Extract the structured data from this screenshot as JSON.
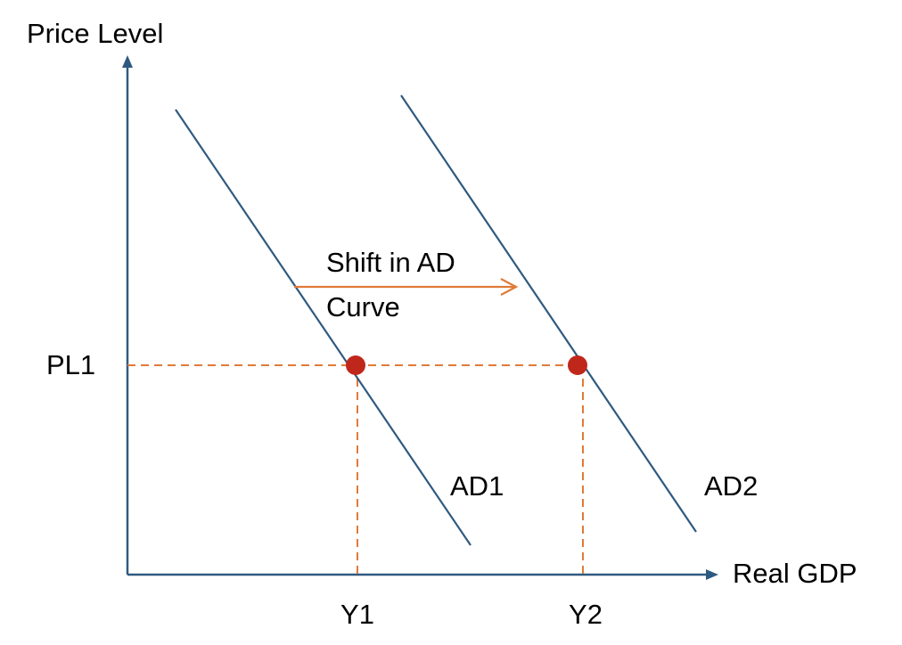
{
  "axes": {
    "y_label": "Price Level",
    "x_label": "Real GDP"
  },
  "curves": [
    {
      "label": "AD1"
    },
    {
      "label": "AD2"
    }
  ],
  "markers": {
    "price_level": "PL1",
    "output": [
      "Y1",
      "Y2"
    ]
  },
  "annotation": [
    "Shift in AD",
    "Curve"
  ]
}
